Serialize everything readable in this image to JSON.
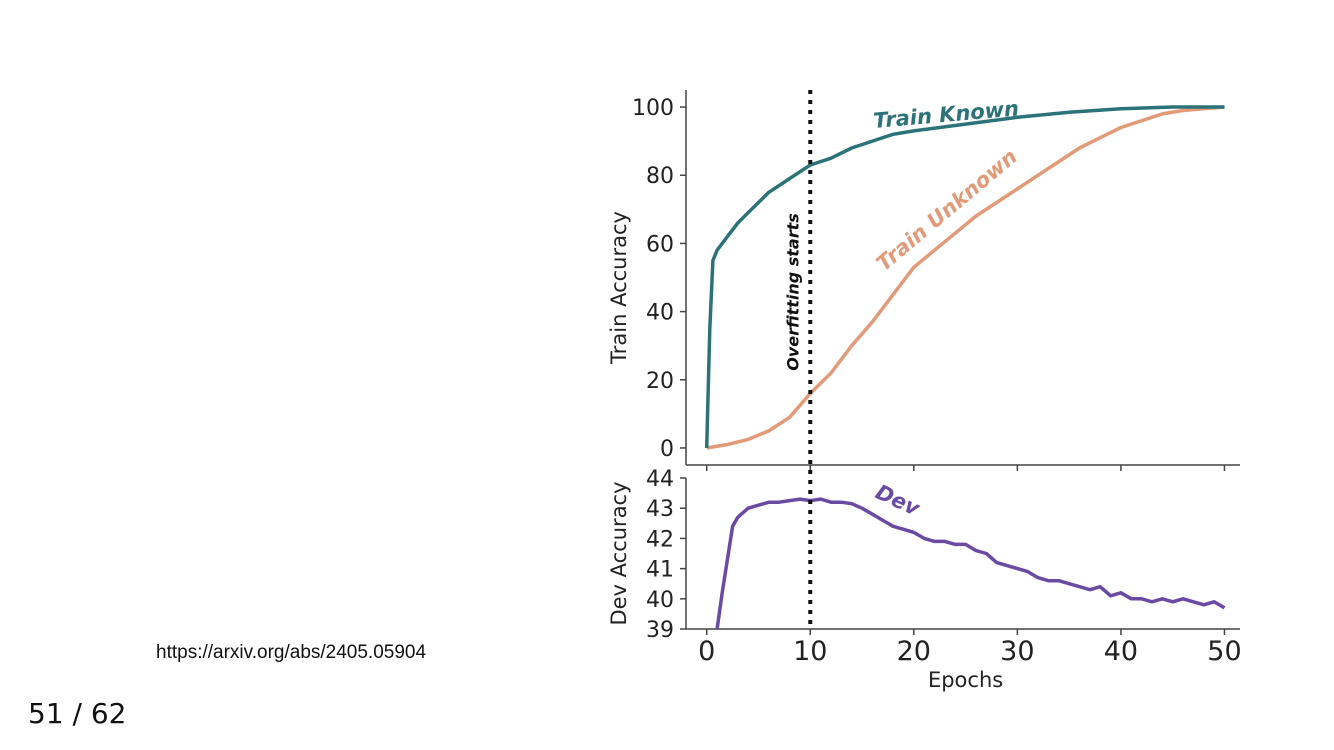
{
  "source_url": "https://arxiv.org/abs/2405.05904",
  "page": "51 / 62",
  "colors": {
    "known": "#2b7379",
    "unknown": "#e29a79",
    "dev": "#6a4aa3",
    "vline": "#111111"
  },
  "chart_data": [
    {
      "type": "line",
      "ylabel": "Train Accuracy",
      "xlim": [
        -2,
        51.5
      ],
      "ylim": [
        -5,
        105
      ],
      "yticks": [
        "0",
        "20",
        "40",
        "60",
        "80",
        "100"
      ],
      "vline": {
        "x": 10,
        "label": "Overfitting starts"
      },
      "series": [
        {
          "name": "Train Known",
          "x": [
            0,
            0.3,
            0.6,
            1,
            2,
            3,
            4,
            5,
            6,
            7,
            8,
            9,
            10,
            12,
            14,
            16,
            18,
            20,
            25,
            30,
            35,
            40,
            45,
            50
          ],
          "y": [
            0,
            35,
            55,
            58,
            62,
            66,
            69,
            72,
            75,
            77,
            79,
            81,
            83,
            85,
            88,
            90,
            92,
            93,
            95,
            97,
            98.5,
            99.5,
            100,
            100
          ]
        },
        {
          "name": "Train Unknown",
          "x": [
            0,
            2,
            4,
            6,
            8,
            10,
            12,
            14,
            16,
            18,
            20,
            22,
            24,
            26,
            28,
            30,
            32,
            34,
            36,
            38,
            40,
            42,
            44,
            46,
            48,
            50
          ],
          "y": [
            0,
            1,
            2.5,
            5,
            9,
            16,
            22,
            30,
            37,
            45,
            53,
            58,
            63,
            68,
            72,
            76,
            80,
            84,
            88,
            91,
            94,
            96,
            98,
            99,
            99.5,
            100
          ]
        }
      ]
    },
    {
      "type": "line",
      "xlabel": "Epochs",
      "ylabel": "Dev Accuracy",
      "xlim": [
        -2,
        51.5
      ],
      "ylim": [
        39,
        44
      ],
      "xticks": [
        "0",
        "10",
        "20",
        "30",
        "40",
        "50"
      ],
      "yticks": [
        "39",
        "40",
        "41",
        "42",
        "43",
        "44"
      ],
      "vline": {
        "x": 10
      },
      "series": [
        {
          "name": "Dev",
          "x": [
            1,
            1.5,
            2,
            2.5,
            3,
            4,
            5,
            6,
            7,
            8,
            9,
            10,
            11,
            12,
            13,
            14,
            15,
            16,
            17,
            18,
            19,
            20,
            21,
            22,
            23,
            24,
            25,
            26,
            27,
            28,
            29,
            30,
            31,
            32,
            33,
            34,
            35,
            36,
            37,
            38,
            39,
            40,
            41,
            42,
            43,
            44,
            45,
            46,
            47,
            48,
            49,
            50
          ],
          "y": [
            39,
            40.2,
            41.3,
            42.4,
            42.7,
            43.0,
            43.1,
            43.2,
            43.2,
            43.25,
            43.3,
            43.25,
            43.3,
            43.2,
            43.2,
            43.15,
            43.0,
            42.8,
            42.6,
            42.4,
            42.3,
            42.2,
            42.0,
            41.9,
            41.9,
            41.8,
            41.8,
            41.6,
            41.5,
            41.2,
            41.1,
            41.0,
            40.9,
            40.7,
            40.6,
            40.6,
            40.5,
            40.4,
            40.3,
            40.4,
            40.1,
            40.2,
            40.0,
            40.0,
            39.9,
            40.0,
            39.9,
            40.0,
            39.9,
            39.8,
            39.9,
            39.7
          ]
        }
      ]
    }
  ]
}
